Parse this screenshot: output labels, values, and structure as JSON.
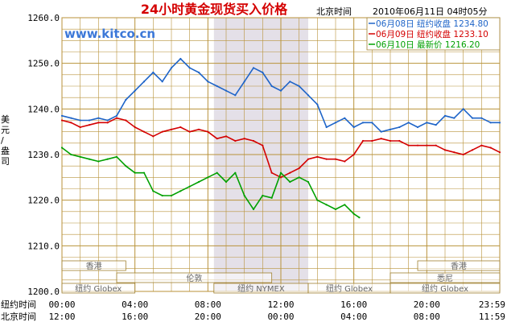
{
  "title": "24小时黄金现货买入价格",
  "clock_label": "北京时间",
  "timestamp": "2010年06月11日 04时05分",
  "watermark": "www.kitco.cn",
  "ylabel": "美元/盎司",
  "row_labels": [
    "纽约时间",
    "北京时间"
  ],
  "ny_times": [
    "00:00",
    "04:00",
    "08:00",
    "12:00",
    "16:00",
    "20:00",
    "23:59"
  ],
  "bj_times": [
    "12:00",
    "16:00",
    "20:00",
    "00:00",
    "04:00",
    "08:00",
    "11:59"
  ],
  "legend": [
    {
      "date": "06月08日",
      "label": "纽约收盘",
      "value": "1234.80",
      "color": "#1e64c8"
    },
    {
      "date": "06月09日",
      "label": "纽约收盘",
      "value": "1233.10",
      "color": "#d40000"
    },
    {
      "date": "06月10日",
      "label": "最新价",
      "value": "1216.20",
      "color": "#00a000"
    }
  ],
  "sessions": [
    {
      "name": "香港",
      "start": 0.0,
      "end": 3.5,
      "row": 0
    },
    {
      "name": "伦敦",
      "start": 3.0,
      "end": 11.5,
      "row": 1
    },
    {
      "name": "纽约 Globex",
      "start": 0.0,
      "end": 4.0,
      "row": 2
    },
    {
      "name": "纽约 NYMEX",
      "start": 8.33,
      "end": 13.5,
      "row": 2
    },
    {
      "name": "纽约 Globex",
      "start": 13.5,
      "end": 18.0,
      "row": 2
    },
    {
      "name": "香港",
      "start": 19.5,
      "end": 24.0,
      "row": 0
    },
    {
      "name": "悉尼",
      "start": 18.0,
      "end": 24.0,
      "row": 1
    },
    {
      "name": "纽约 Globex",
      "start": 18.0,
      "end": 24.0,
      "row": 2
    }
  ],
  "chart_data": {
    "type": "line",
    "title": "24小时黄金现货买入价格",
    "xlabel": "",
    "ylabel": "美元/盎司",
    "ylim": [
      1200,
      1260
    ],
    "xlim": [
      0,
      24
    ],
    "yticks": [
      "1200.0",
      "1210.0",
      "1220.0",
      "1230.0",
      "1240.0",
      "1250.0",
      "1260.0"
    ],
    "highlight_range": [
      8.33,
      13.5
    ],
    "grid": true,
    "legend_position": "top-right",
    "series": [
      {
        "name": "06月08日 纽约收盘 1234.80",
        "color": "#1e64c8",
        "x": [
          0,
          0.5,
          1,
          1.5,
          2,
          2.5,
          3,
          3.5,
          4,
          4.5,
          5,
          5.5,
          6,
          6.5,
          7,
          7.5,
          8,
          8.5,
          9,
          9.5,
          10,
          10.5,
          11,
          11.5,
          12,
          12.5,
          13,
          13.5,
          14,
          14.5,
          15,
          15.5,
          16,
          16.5,
          17,
          17.5,
          18,
          18.5,
          19,
          19.5,
          20,
          20.5,
          21,
          21.5,
          22,
          22.5,
          23,
          23.5,
          24
        ],
        "y": [
          1238.5,
          1238,
          1237.5,
          1237.5,
          1238,
          1237.5,
          1238.5,
          1242,
          1244,
          1246,
          1248,
          1246,
          1249,
          1251,
          1249,
          1248,
          1246,
          1245,
          1244,
          1243,
          1246,
          1249,
          1248,
          1245,
          1244,
          1246,
          1245,
          1243,
          1241,
          1236,
          1237,
          1238,
          1236,
          1237,
          1237,
          1235,
          1235.5,
          1236,
          1237,
          1236,
          1237,
          1236.5,
          1238.5,
          1238,
          1240,
          1238,
          1238,
          1237,
          1237
        ]
      },
      {
        "name": "06月09日 纽约收盘 1233.10",
        "color": "#d40000",
        "x": [
          0,
          0.5,
          1,
          1.5,
          2,
          2.5,
          3,
          3.5,
          4,
          4.5,
          5,
          5.5,
          6,
          6.5,
          7,
          7.5,
          8,
          8.5,
          9,
          9.5,
          10,
          10.5,
          11,
          11.5,
          12,
          12.5,
          13,
          13.5,
          14,
          14.5,
          15,
          15.5,
          16,
          16.5,
          17,
          17.5,
          18,
          18.5,
          19,
          19.5,
          20,
          20.5,
          21,
          21.5,
          22,
          22.5,
          23,
          23.5,
          24
        ],
        "y": [
          1237.5,
          1237,
          1236,
          1236.5,
          1237,
          1237,
          1238,
          1237.5,
          1236,
          1235,
          1234,
          1235,
          1235.5,
          1236,
          1235,
          1235.5,
          1235,
          1233.5,
          1234,
          1233,
          1233.5,
          1233,
          1232,
          1226,
          1225,
          1226,
          1227,
          1229,
          1229.5,
          1229,
          1229,
          1228.5,
          1230,
          1233,
          1233,
          1233.5,
          1233,
          1233,
          1232,
          1232,
          1232,
          1232,
          1231,
          1230.5,
          1230,
          1231,
          1232,
          1231.5,
          1230.5
        ]
      },
      {
        "name": "06月10日 最新价 1216.20",
        "color": "#00a000",
        "x": [
          0,
          0.5,
          1,
          1.5,
          2,
          2.5,
          3,
          3.5,
          4,
          4.5,
          5,
          5.5,
          6,
          6.5,
          7,
          7.5,
          8,
          8.5,
          9,
          9.5,
          10,
          10.5,
          11,
          11.5,
          12,
          12.5,
          13,
          13.5,
          14,
          14.5,
          15,
          15.5,
          16,
          16.3
        ],
        "y": [
          1231.5,
          1230,
          1229.5,
          1229,
          1228.5,
          1229,
          1229.5,
          1227.5,
          1226,
          1226,
          1222,
          1221,
          1221,
          1222,
          1223,
          1224,
          1225,
          1226,
          1224,
          1226,
          1221,
          1218,
          1221,
          1220.5,
          1226,
          1224,
          1225,
          1224,
          1220,
          1219,
          1218,
          1219,
          1217,
          1216.2
        ]
      }
    ]
  }
}
